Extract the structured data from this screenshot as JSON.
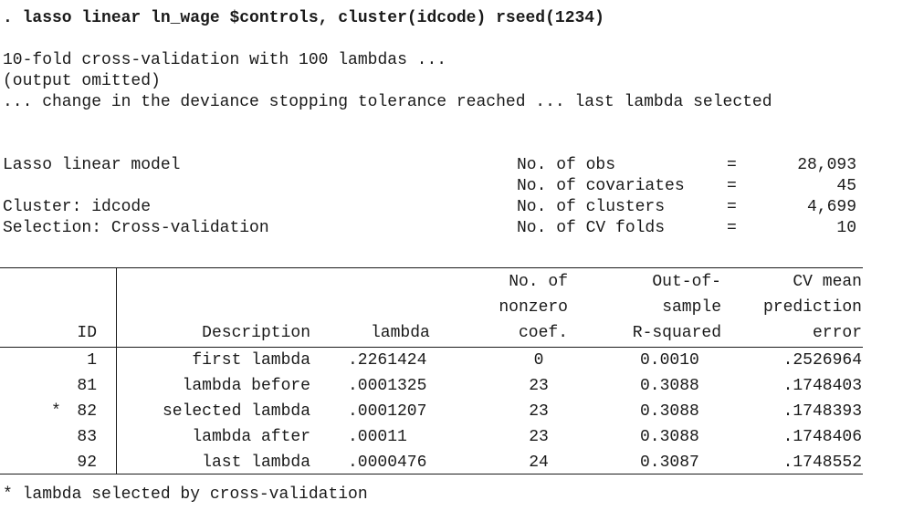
{
  "command": ". lasso linear ln_wage $controls, cluster(idcode) rseed(1234)",
  "log": [
    "10-fold cross-validation with 100 lambdas ...",
    "(output omitted)",
    "... change in the deviance stopping tolerance reached ... last lambda selected"
  ],
  "model": {
    "title": "Lasso linear model",
    "cluster": "Cluster: idcode",
    "selection": "Selection: Cross-validation",
    "stats": [
      {
        "label": "No. of obs",
        "eq": "=",
        "value": "28,093"
      },
      {
        "label": "No. of covariates",
        "eq": "=",
        "value": "45"
      },
      {
        "label": "No. of clusters",
        "eq": "=",
        "value": "4,699"
      },
      {
        "label": "No. of CV folds",
        "eq": "=",
        "value": "10"
      }
    ]
  },
  "table": {
    "headers": {
      "id": "ID",
      "description": "Description",
      "lambda": "lambda",
      "nonzero": [
        "No. of",
        "nonzero",
        "coef."
      ],
      "rsq": [
        "Out-of-",
        "sample",
        "R-squared"
      ],
      "cv": [
        "CV mean",
        "prediction",
        "error"
      ]
    },
    "rows": [
      {
        "marker": "",
        "id": "1",
        "description": "first lambda",
        "lambda": ".2261424",
        "nonzero": "0",
        "rsq": "0.0010",
        "cv": ".2526964"
      },
      {
        "marker": "",
        "id": "81",
        "description": "lambda before",
        "lambda": ".0001325",
        "nonzero": "23",
        "rsq": "0.3088",
        "cv": ".1748403"
      },
      {
        "marker": "*",
        "id": "82",
        "description": "selected lambda",
        "lambda": ".0001207",
        "nonzero": "23",
        "rsq": "0.3088",
        "cv": ".1748393"
      },
      {
        "marker": "",
        "id": "83",
        "description": "lambda after",
        "lambda": ".00011",
        "nonzero": "23",
        "rsq": "0.3088",
        "cv": ".1748406"
      },
      {
        "marker": "",
        "id": "92",
        "description": "last lambda",
        "lambda": ".0000476",
        "nonzero": "24",
        "rsq": "0.3087",
        "cv": ".1748552"
      }
    ]
  },
  "footnote": "* lambda selected by cross-validation"
}
